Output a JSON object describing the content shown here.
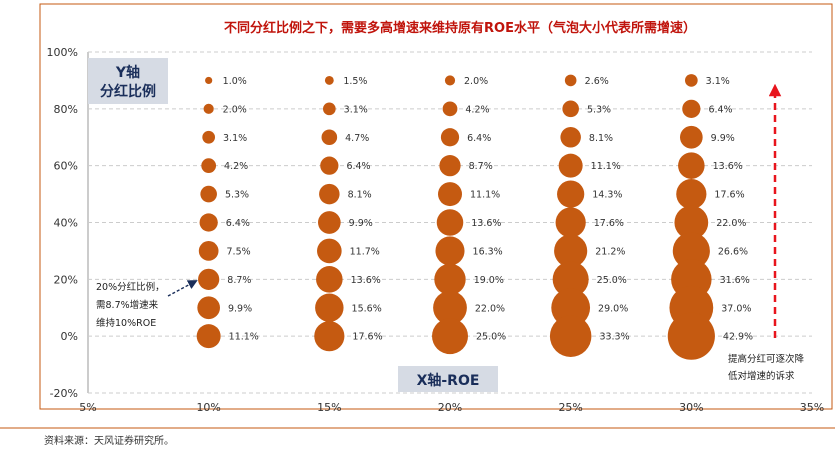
{
  "chart_data": {
    "type": "bubble",
    "title": "不同分红比例之下，需要多高增速来维持原有ROE水平（气泡大小代表所需增速）",
    "y_axis_box": [
      "Y轴",
      "分红比例"
    ],
    "x_axis_box": "X轴-ROE",
    "x_ticks": [
      "5%",
      "10%",
      "15%",
      "20%",
      "25%",
      "30%",
      "35%"
    ],
    "x_tick_values": [
      5,
      10,
      15,
      20,
      25,
      30,
      35
    ],
    "y_ticks": [
      "100%",
      "80%",
      "60%",
      "40%",
      "20%",
      "0%",
      "-20%"
    ],
    "y_tick_values": [
      100,
      80,
      60,
      40,
      20,
      0,
      -20
    ],
    "xlim": [
      5,
      35
    ],
    "ylim": [
      -20,
      100
    ],
    "grid": "horizontal-dashed",
    "roe_values": [
      10,
      15,
      20,
      25,
      30
    ],
    "payout_values": [
      90,
      80,
      70,
      60,
      50,
      40,
      30,
      20,
      10,
      0
    ],
    "series": [
      {
        "roe": 10,
        "growth": [
          1.0,
          2.0,
          3.1,
          4.2,
          5.3,
          6.4,
          7.5,
          8.7,
          9.9,
          11.1
        ],
        "labels": [
          "1.0%",
          "2.0%",
          "3.1%",
          "4.2%",
          "5.3%",
          "6.4%",
          "7.5%",
          "8.7%",
          "9.9%",
          "11.1%"
        ]
      },
      {
        "roe": 15,
        "growth": [
          1.5,
          3.1,
          4.7,
          6.4,
          8.1,
          9.9,
          11.7,
          13.6,
          15.6,
          17.6
        ],
        "labels": [
          "1.5%",
          "3.1%",
          "4.7%",
          "6.4%",
          "8.1%",
          "9.9%",
          "11.7%",
          "13.6%",
          "15.6%",
          "17.6%"
        ]
      },
      {
        "roe": 20,
        "growth": [
          2.0,
          4.2,
          6.4,
          8.7,
          11.1,
          13.6,
          16.3,
          19.0,
          22.0,
          25.0
        ],
        "labels": [
          "2.0%",
          "4.2%",
          "6.4%",
          "8.7%",
          "11.1%",
          "13.6%",
          "16.3%",
          "19.0%",
          "22.0%",
          "25.0%"
        ]
      },
      {
        "roe": 25,
        "growth": [
          2.6,
          5.3,
          8.1,
          11.1,
          14.3,
          17.6,
          21.2,
          25.0,
          29.0,
          33.3
        ],
        "labels": [
          "2.6%",
          "5.3%",
          "8.1%",
          "11.1%",
          "14.3%",
          "17.6%",
          "21.2%",
          "25.0%",
          "29.0%",
          "33.3%"
        ]
      },
      {
        "roe": 30,
        "growth": [
          3.1,
          6.4,
          9.9,
          13.6,
          17.6,
          22.0,
          26.6,
          31.6,
          37.0,
          42.9
        ],
        "labels": [
          "3.1%",
          "6.4%",
          "9.9%",
          "13.6%",
          "17.6%",
          "22.0%",
          "26.6%",
          "31.6%",
          "37.0%",
          "42.9%"
        ]
      }
    ],
    "annotation_left": [
      "20%分红比例，",
      "需8.7%增速来",
      "维持10%ROE"
    ],
    "annotation_right": [
      "提高分红可逐次降",
      "低对增速的诉求"
    ],
    "source": "资料来源：天风证券研究所。",
    "colors": {
      "bubble": "#c55a11",
      "title": "#c0140c",
      "arrow_red": "#e8141c",
      "arrow_navy": "#1a2e5a",
      "axis_box_bg": "#d6dbe4",
      "axis_box_text": "#1a2e5a",
      "grid": "#cccccc",
      "frame": "#c55a11"
    }
  }
}
